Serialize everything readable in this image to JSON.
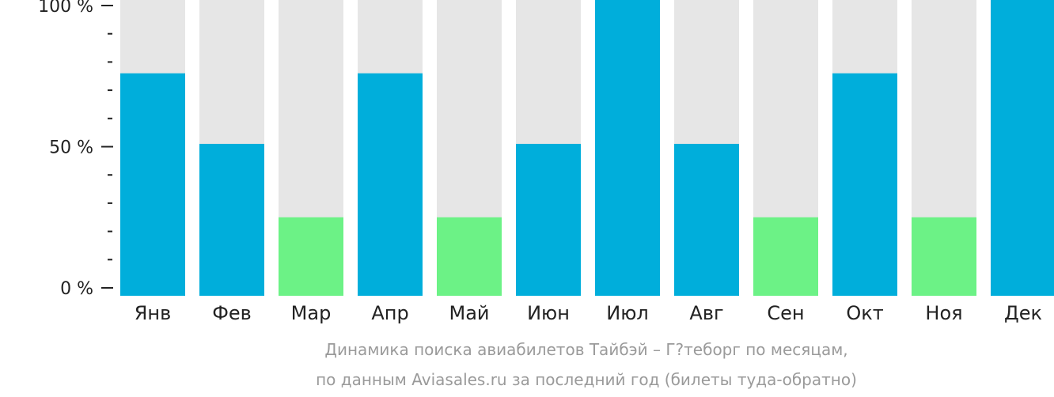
{
  "chart_data": {
    "type": "bar",
    "categories": [
      "Янв",
      "Фев",
      "Мар",
      "Апр",
      "Май",
      "Июн",
      "Июл",
      "Авг",
      "Сен",
      "Окт",
      "Ноя",
      "Дек"
    ],
    "values": [
      76,
      51,
      25,
      76,
      25,
      51,
      100,
      51,
      25,
      76,
      25,
      100
    ],
    "ylim": [
      0,
      100
    ],
    "yticks": [
      {
        "value": 0,
        "label": "0 %"
      },
      {
        "value": 50,
        "label": "50 %"
      },
      {
        "value": 100,
        "label": "100 %"
      }
    ],
    "minor_ticks": [
      10,
      20,
      30,
      40,
      60,
      70,
      80,
      90
    ],
    "colors": {
      "high": "#00aedb",
      "low": "#6cf286",
      "track": "#e6e6e6",
      "axis": "#222222",
      "caption": "#9a9a9a"
    },
    "low_threshold": 30
  },
  "caption": {
    "line1": "Динамика поиска авиабилетов Тайбэй – Г?теборг по месяцам,",
    "line2": "по данным Aviasales.ru за последний год (билеты туда-обратно)"
  }
}
